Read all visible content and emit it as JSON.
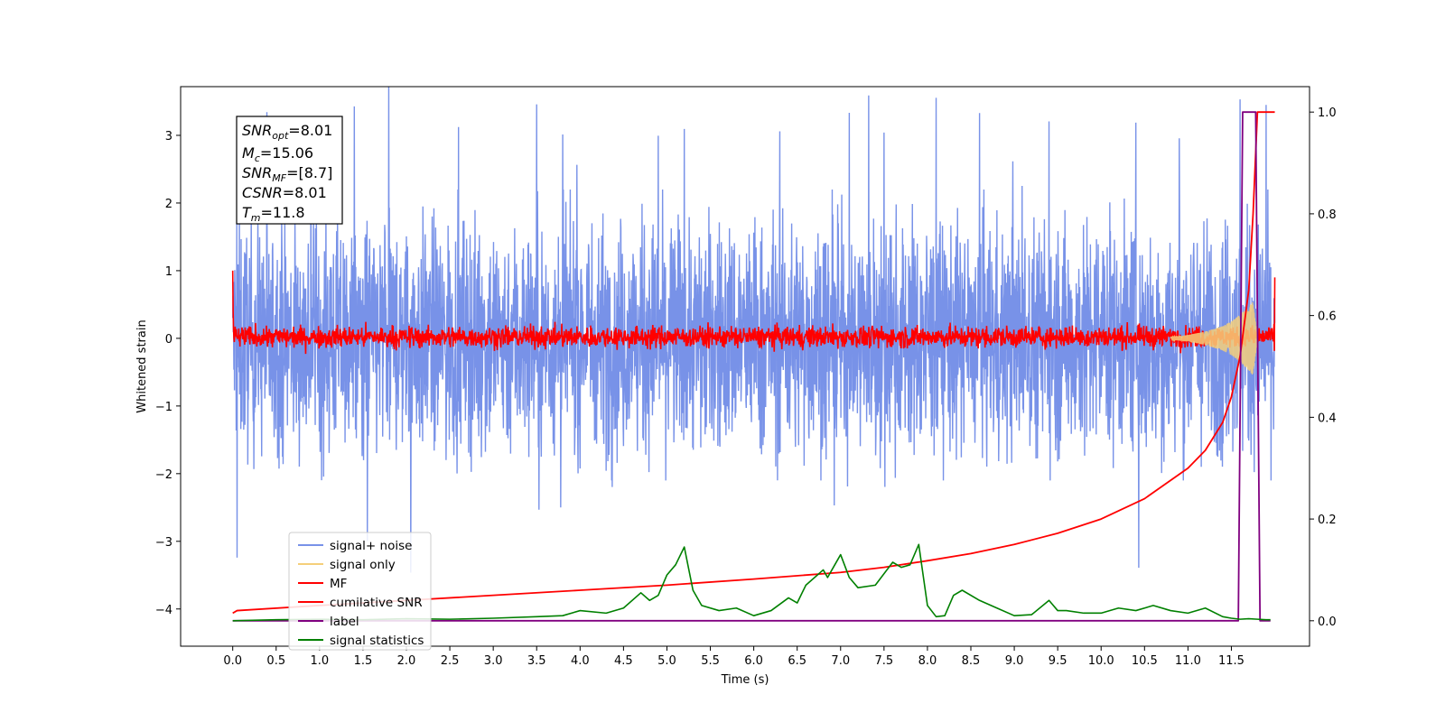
{
  "chart_data": {
    "type": "line",
    "xlabel": "Time (s)",
    "ylabel": "Whitened strain",
    "xlim": [
      -0.6,
      12.4
    ],
    "ylim": [
      -4.55,
      3.72
    ],
    "ylim_right": [
      -0.05,
      1.05
    ],
    "x_ticks": [
      "0.0",
      "0.5",
      "1.0",
      "1.5",
      "2.0",
      "2.5",
      "3.0",
      "3.5",
      "4.0",
      "4.5",
      "5.0",
      "5.5",
      "6.0",
      "6.5",
      "7.0",
      "7.5",
      "8.0",
      "8.5",
      "9.0",
      "9.5",
      "10.0",
      "10.5",
      "11.0",
      "11.5"
    ],
    "y_ticks": [
      "3",
      "2",
      "1",
      "0",
      "−1",
      "−2",
      "−3",
      "−4"
    ],
    "y_ticks_right": [
      "1.0",
      "0.8",
      "0.6",
      "0.4",
      "0.2",
      "0.0"
    ],
    "stats_box": {
      "snr_opt": {
        "sym": "SNR",
        "sub": "opt",
        "val": "=8.01"
      },
      "mc": {
        "sym": "M",
        "sub": "c",
        "val": "=15.06"
      },
      "snr_mf": {
        "sym": "SNR",
        "sub": "MF",
        "val": "=[8.7]"
      },
      "csnr": {
        "sym": "CSNR",
        "sub": "",
        "val": "=8.01"
      },
      "tm": {
        "sym": "T",
        "sub": "m",
        "val": "=11.8"
      }
    },
    "legend": {
      "placement": "lower-left",
      "entries": [
        "signal+ noise",
        "signal only",
        "MF",
        "cumilative SNR",
        "label",
        "signal statistics"
      ]
    },
    "series": [
      {
        "name": "signal+ noise",
        "axis": "left",
        "color": "#7892e8",
        "noise_band": [
          -1.5,
          1.6
        ],
        "note_spikes_x": [
          0.05,
          0.9,
          1.4,
          1.55,
          2.05,
          2.6,
          3.5,
          3.8,
          4.9,
          5.2,
          6.3,
          7.1,
          7.5,
          8.1,
          8.6,
          9.4,
          10.4,
          10.9,
          11.6,
          11.9
        ]
      },
      {
        "name": "signal only",
        "axis": "left",
        "color": "#f5cf7a",
        "envelope_x": [
          10.8,
          11.0,
          11.2,
          11.4,
          11.5,
          11.6,
          11.7,
          11.75,
          11.8
        ],
        "envelope_y": [
          0.02,
          0.05,
          0.1,
          0.18,
          0.25,
          0.35,
          0.47,
          0.55,
          0.0
        ]
      },
      {
        "name": "MF",
        "axis": "left",
        "color": "#ff0000",
        "noise_band": [
          -0.15,
          0.2
        ],
        "start_y": 1.0
      },
      {
        "name": "cumilative SNR",
        "axis": "right",
        "color": "#ff0000",
        "x": [
          0.0,
          0.05,
          1.0,
          2.0,
          3.0,
          4.0,
          5.0,
          6.0,
          7.0,
          7.5,
          8.0,
          8.5,
          9.0,
          9.5,
          10.0,
          10.5,
          11.0,
          11.2,
          11.4,
          11.5,
          11.6,
          11.7,
          11.75,
          11.8,
          12.0
        ],
        "y": [
          0.015,
          0.02,
          0.03,
          0.04,
          0.05,
          0.06,
          0.07,
          0.082,
          0.095,
          0.105,
          0.118,
          0.132,
          0.15,
          0.172,
          0.2,
          0.24,
          0.3,
          0.335,
          0.39,
          0.44,
          0.52,
          0.65,
          0.8,
          1.0,
          1.0
        ]
      },
      {
        "name": "label",
        "axis": "right",
        "color": "#800080",
        "x": [
          0.0,
          11.58,
          11.63,
          11.78,
          11.83,
          11.95
        ],
        "y": [
          0.0,
          0.0,
          1.0,
          1.0,
          0.0,
          0.0
        ]
      },
      {
        "name": "signal statistics",
        "axis": "right",
        "color": "#008000",
        "x": [
          0.0,
          0.5,
          1.0,
          1.5,
          2.0,
          2.5,
          3.0,
          3.5,
          3.8,
          4.0,
          4.3,
          4.5,
          4.7,
          4.8,
          4.9,
          5.0,
          5.1,
          5.2,
          5.3,
          5.4,
          5.6,
          5.8,
          6.0,
          6.2,
          6.4,
          6.5,
          6.6,
          6.8,
          6.85,
          6.9,
          7.0,
          7.1,
          7.2,
          7.4,
          7.6,
          7.7,
          7.8,
          7.9,
          8.0,
          8.1,
          8.2,
          8.3,
          8.4,
          8.6,
          8.8,
          9.0,
          9.2,
          9.4,
          9.5,
          9.6,
          9.8,
          10.0,
          10.2,
          10.4,
          10.6,
          10.8,
          11.0,
          11.2,
          11.4,
          11.5,
          11.6,
          11.7,
          11.8,
          11.9,
          11.95
        ],
        "y": [
          0.0,
          0.002,
          0.003,
          0.002,
          0.004,
          0.003,
          0.005,
          0.008,
          0.01,
          0.02,
          0.015,
          0.025,
          0.055,
          0.04,
          0.05,
          0.09,
          0.11,
          0.145,
          0.06,
          0.03,
          0.02,
          0.025,
          0.01,
          0.02,
          0.045,
          0.035,
          0.07,
          0.1,
          0.085,
          0.1,
          0.13,
          0.085,
          0.065,
          0.07,
          0.115,
          0.105,
          0.11,
          0.15,
          0.03,
          0.008,
          0.01,
          0.05,
          0.06,
          0.04,
          0.025,
          0.01,
          0.012,
          0.04,
          0.02,
          0.02,
          0.015,
          0.015,
          0.025,
          0.02,
          0.03,
          0.02,
          0.015,
          0.025,
          0.008,
          0.005,
          0.003,
          0.004,
          0.003,
          0.002,
          0.002
        ]
      }
    ]
  }
}
